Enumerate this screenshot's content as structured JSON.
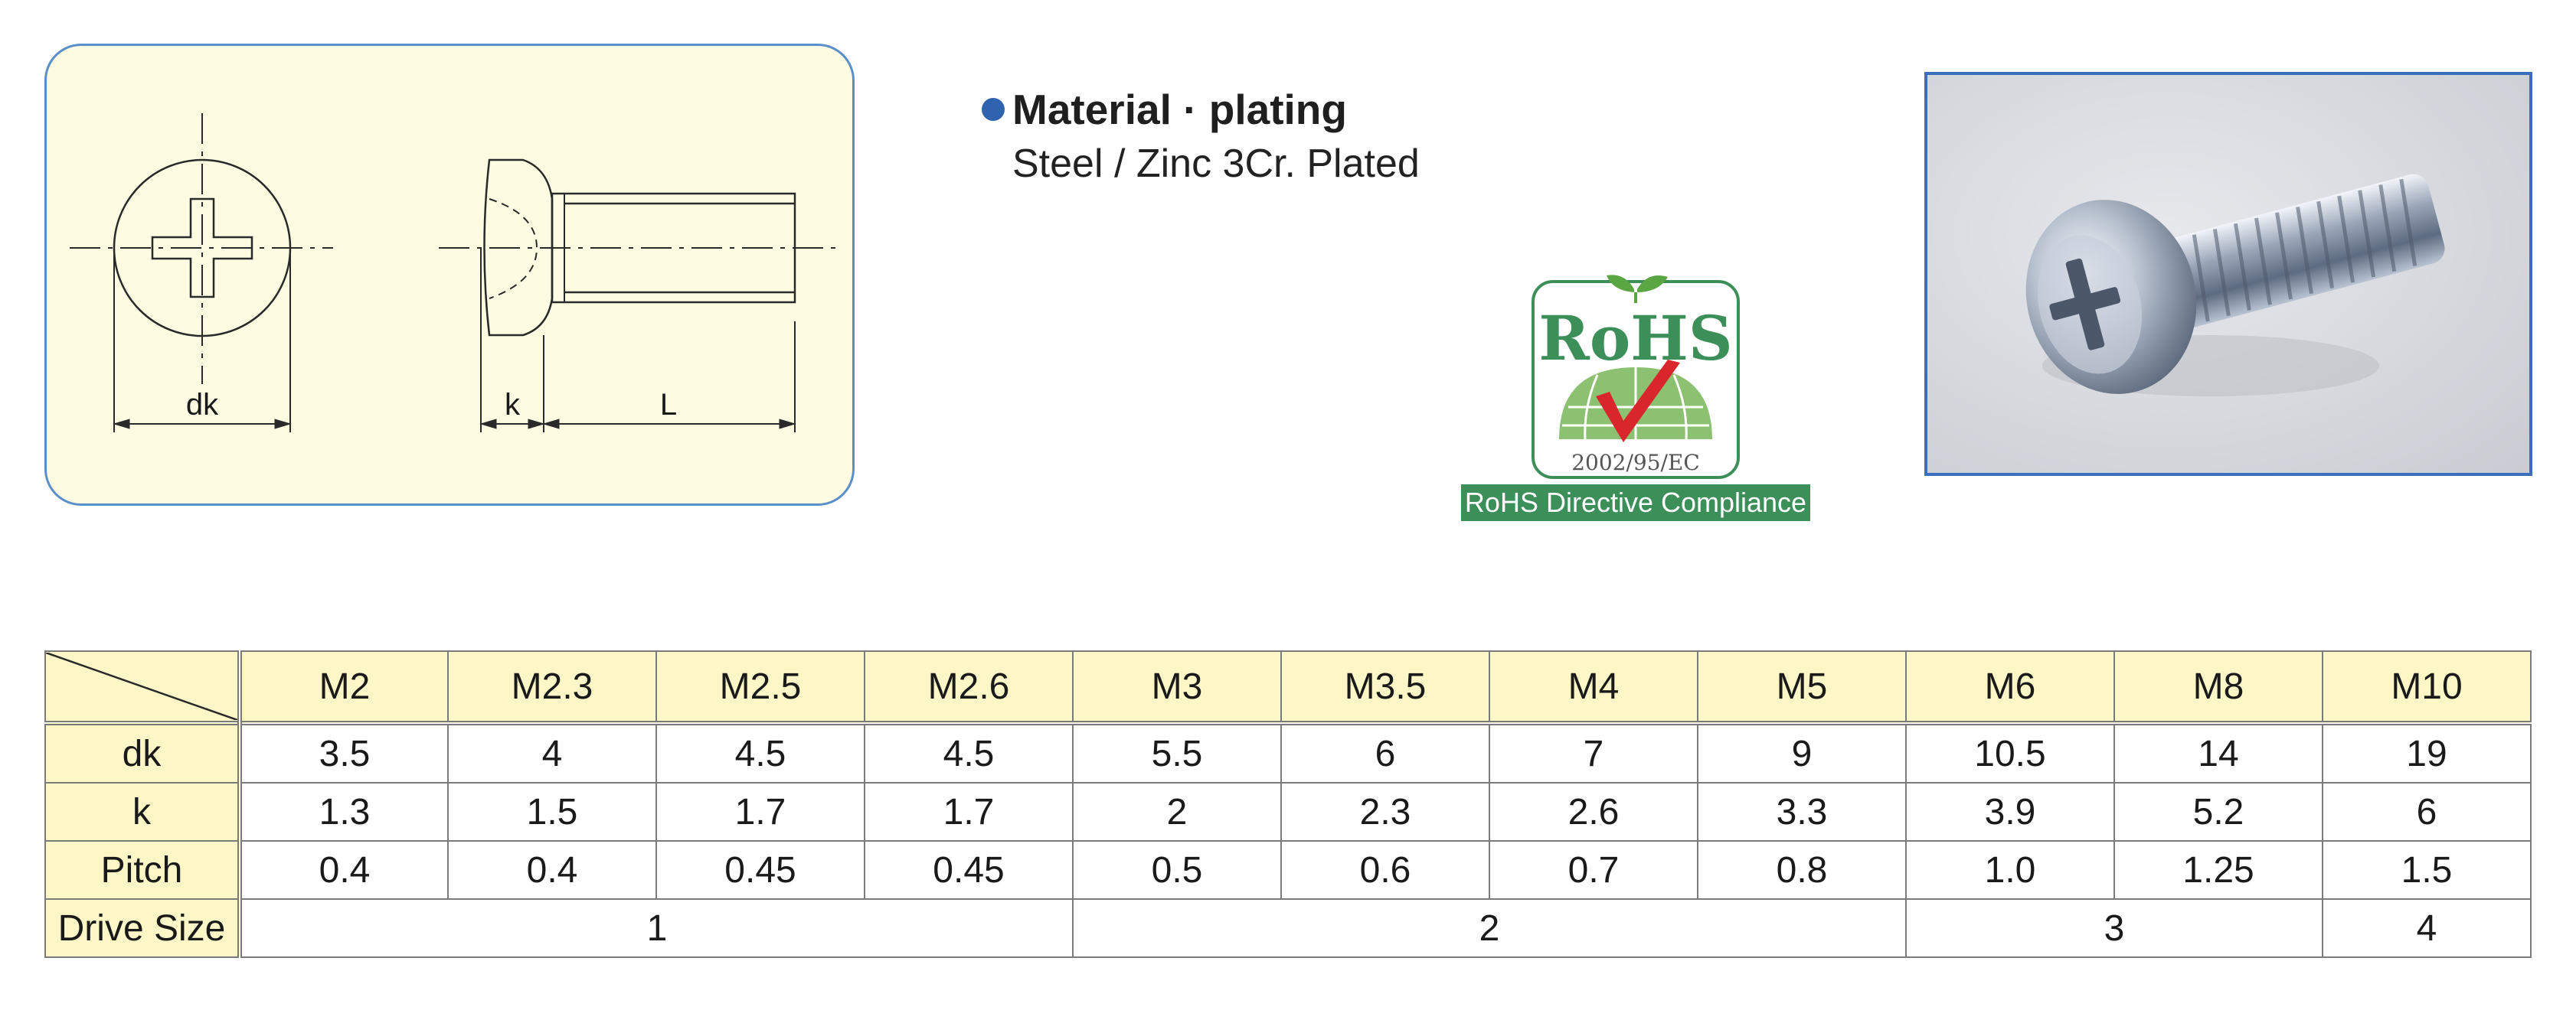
{
  "drawing": {
    "label_dk": "dk",
    "label_k": "k",
    "label_L": "L"
  },
  "material": {
    "title": "Material · plating",
    "value": "Steel / Zinc 3Cr. Plated"
  },
  "rohs": {
    "mark_text": "RoHS",
    "directive_code": "2002/95/EC",
    "caption": "RoHS Directive Compliance"
  },
  "photo": {
    "subject_icon": "pan-head-phillips-screw"
  },
  "colors": {
    "panel_bg": "#fdfbe2",
    "panel_border": "#5b8fc9",
    "table_header_bg": "#fdf7c8",
    "rohs_green": "#3d8f5a",
    "rohs_check": "#d9262c",
    "bullet_blue": "#2f63ad"
  },
  "spec_table": {
    "sizes": [
      "M2",
      "M2.3",
      "M2.5",
      "M2.6",
      "M3",
      "M3.5",
      "M4",
      "M5",
      "M6",
      "M8",
      "M10"
    ],
    "rows": [
      {
        "label": "dk",
        "values": [
          "3.5",
          "4",
          "4.5",
          "4.5",
          "5.5",
          "6",
          "7",
          "9",
          "10.5",
          "14",
          "19"
        ]
      },
      {
        "label": "k",
        "values": [
          "1.3",
          "1.5",
          "1.7",
          "1.7",
          "2",
          "2.3",
          "2.6",
          "3.3",
          "3.9",
          "5.2",
          "6"
        ]
      },
      {
        "label": "Pitch",
        "values": [
          "0.4",
          "0.4",
          "0.45",
          "0.45",
          "0.5",
          "0.6",
          "0.7",
          "0.8",
          "1.0",
          "1.25",
          "1.5"
        ]
      }
    ],
    "drive_size": {
      "label": "Drive Size",
      "groups": [
        {
          "value": "1",
          "span": 4
        },
        {
          "value": "2",
          "span": 4
        },
        {
          "value": "3",
          "span": 2
        },
        {
          "value": "4",
          "span": 1
        }
      ]
    }
  }
}
